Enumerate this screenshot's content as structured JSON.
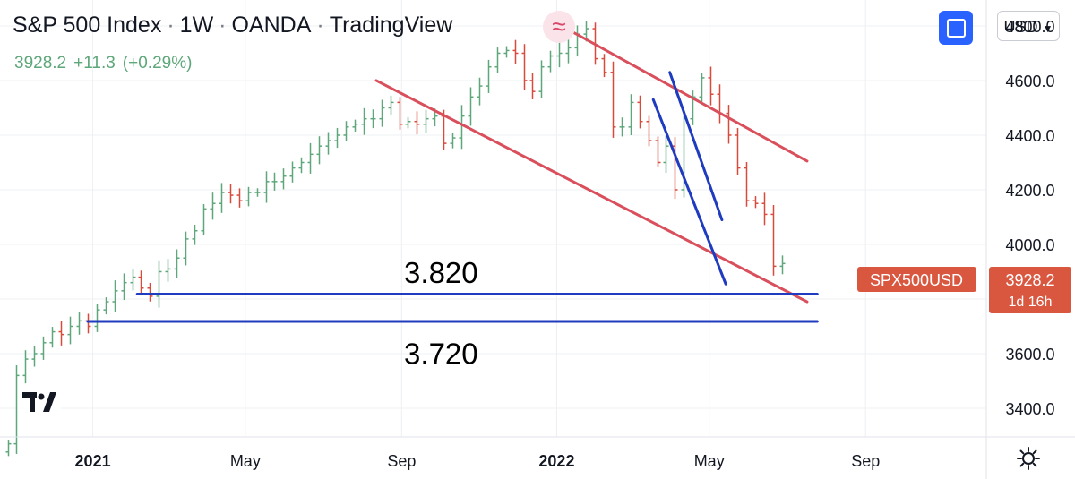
{
  "header": {
    "symbol": "S&P 500 Index",
    "interval": "1W",
    "broker": "OANDA",
    "platform": "TradingView",
    "last": "3928.2",
    "change": "+11.3",
    "change_pct": "(+0.29%)",
    "approx_glyph": "≈"
  },
  "toolbar": {
    "currency": "USD"
  },
  "price_tag": {
    "symbol": "SPX500USD",
    "price": "3928.2",
    "countdown": "1d 16h"
  },
  "colors": {
    "up": "#5ea77a",
    "down": "#d94a3d",
    "resistance": "#d94f5c",
    "support": "#1f3bbf",
    "tag": "#d9563f",
    "grid": "#eef0f3"
  },
  "icons": {
    "fullscreen": "fullscreen-icon",
    "settings": "gear-icon",
    "logo": "tradingview-logo-icon"
  },
  "annotations": [
    {
      "text": "3.820",
      "date": "2021-09-01",
      "price": 3820
    },
    {
      "text": "3.720",
      "date": "2021-09-01",
      "price": 3720
    }
  ],
  "chart_data": {
    "type": "ohlc",
    "title": "S&P 500 Index · 1W · OANDA · TradingView",
    "x_axis": {
      "type": "date",
      "range": [
        "2020-10-20",
        "2022-12-05"
      ],
      "ticks": [
        {
          "label": "2021",
          "date": "2021-01-01",
          "bold": true
        },
        {
          "label": "May",
          "date": "2021-05-01",
          "bold": false
        },
        {
          "label": "Sep",
          "date": "2021-09-01",
          "bold": false
        },
        {
          "label": "2022",
          "date": "2022-01-01",
          "bold": true
        },
        {
          "label": "May",
          "date": "2022-05-01",
          "bold": false
        },
        {
          "label": "Sep",
          "date": "2022-09-01",
          "bold": false
        }
      ]
    },
    "y_axis": {
      "range": [
        3295,
        4895
      ],
      "ticks": [
        "3400.0",
        "3600.0",
        "3800.0",
        "4000.0",
        "4200.0",
        "4400.0",
        "4600.0",
        "4800.0"
      ],
      "position": "right"
    },
    "grid": true,
    "start_date": "2020-10-26",
    "bars_close": [
      3270,
      3520,
      3580,
      3600,
      3640,
      3680,
      3670,
      3700,
      3720,
      3700,
      3760,
      3790,
      3830,
      3860,
      3880,
      3840,
      3810,
      3900,
      3910,
      3950,
      4020,
      4050,
      4130,
      4150,
      4190,
      4180,
      4160,
      4190,
      4190,
      4230,
      4230,
      4250,
      4280,
      4300,
      4330,
      4360,
      4380,
      4400,
      4430,
      4440,
      4460,
      4460,
      4500,
      4520,
      4440,
      4450,
      4440,
      4460,
      4470,
      4370,
      4390,
      4470,
      4540,
      4580,
      4650,
      4700,
      4710,
      4700,
      4600,
      4560,
      4650,
      4690,
      4700,
      4720,
      4770,
      4790,
      4680,
      4630,
      4430,
      4430,
      4520,
      4450,
      4380,
      4300,
      4360,
      4200,
      4460,
      4540,
      4610,
      4550,
      4480,
      4400,
      4280,
      4160,
      4150,
      4110,
      3920,
      3930
    ],
    "series": [
      {
        "name": "Falling channel upper",
        "style": "line",
        "color": "#d94f5c",
        "points": [
          {
            "x": "2021-12-30",
            "y": 4815
          },
          {
            "x": "2022-07-17",
            "y": 4305
          }
        ]
      },
      {
        "name": "Falling channel lower",
        "style": "line",
        "color": "#d94f5c",
        "points": [
          {
            "x": "2021-08-12",
            "y": 4600
          },
          {
            "x": "2022-07-17",
            "y": 3790
          }
        ]
      },
      {
        "name": "Wedge line A",
        "style": "line",
        "color": "#1f3bbf",
        "points": [
          {
            "x": "2022-03-18",
            "y": 4530
          },
          {
            "x": "2022-05-14",
            "y": 3855
          }
        ]
      },
      {
        "name": "Wedge line B",
        "style": "line",
        "color": "#1f3bbf",
        "points": [
          {
            "x": "2022-03-31",
            "y": 4630
          },
          {
            "x": "2022-05-11",
            "y": 4090
          }
        ]
      },
      {
        "name": "Support 3820",
        "style": "hline",
        "color": "#1f3bbf",
        "points": [
          {
            "x": "2021-02-05",
            "y": 3818
          },
          {
            "x": "2022-07-25",
            "y": 3818
          }
        ]
      },
      {
        "name": "Support 3720",
        "style": "hline",
        "color": "#1f3bbf",
        "points": [
          {
            "x": "2020-12-28",
            "y": 3718
          },
          {
            "x": "2022-07-25",
            "y": 3718
          }
        ]
      }
    ]
  }
}
